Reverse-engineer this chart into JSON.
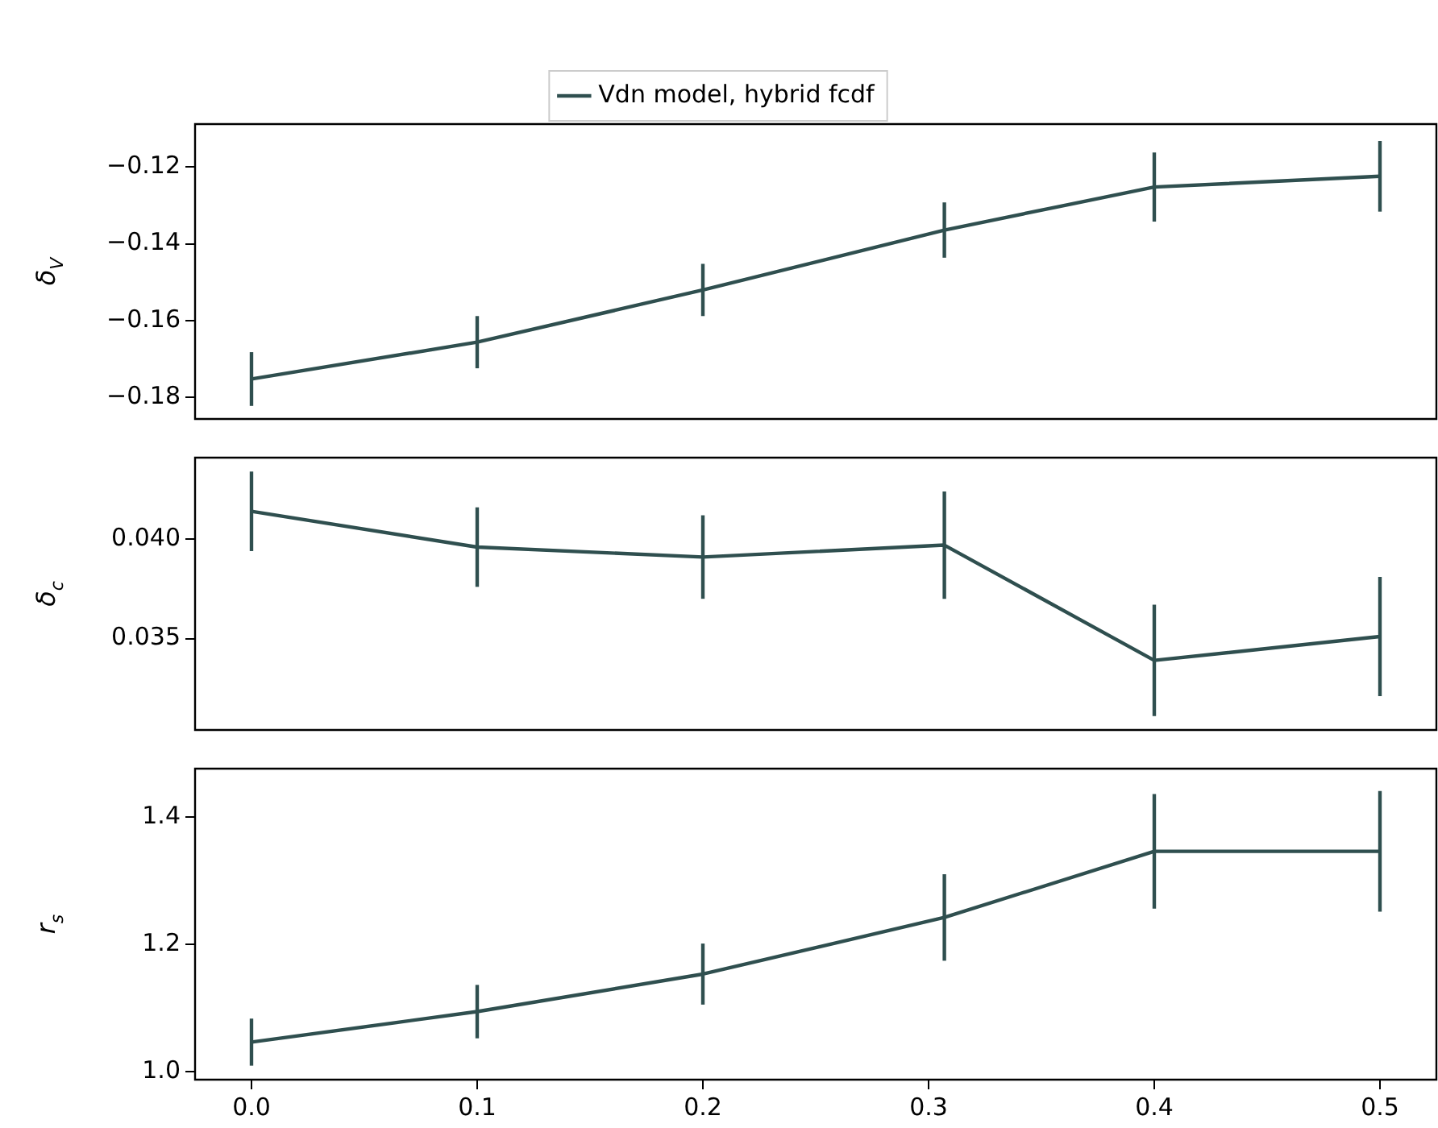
{
  "chart_data": [
    {
      "type": "line",
      "ylabel": "δ$_{V}$",
      "x": [
        0.0,
        0.1,
        0.2,
        0.307,
        0.4,
        0.5
      ],
      "series": [
        {
          "name": "Vdn model, hybrid fcdf",
          "color": "#2f4f4f",
          "values": [
            -0.1752,
            -0.1656,
            -0.152,
            -0.1364,
            -0.1252,
            -0.1224
          ],
          "errors": [
            0.007,
            0.0068,
            0.0068,
            0.0072,
            0.009,
            0.0092
          ]
        }
      ],
      "xlim": [
        -0.025,
        0.525
      ],
      "xticks": [
        0.0,
        0.1,
        0.2,
        0.3,
        0.4,
        0.5
      ],
      "ylim": [
        -0.1856,
        -0.1088
      ],
      "yticks": [
        -0.18,
        -0.16,
        -0.14,
        -0.12
      ],
      "tick_labels": "y",
      "legend": "top",
      "grid": false,
      "marker": "none",
      "line_style": "solid"
    },
    {
      "type": "line",
      "ylabel": "δ$_{c}$",
      "x": [
        0.0,
        0.1,
        0.2,
        0.307,
        0.4,
        0.5
      ],
      "series": [
        {
          "color": "#2f4f4f",
          "values": [
            0.0414,
            0.0396,
            0.0391,
            0.0397,
            0.0339,
            0.0351
          ],
          "errors": [
            0.002,
            0.002,
            0.0021,
            0.0027,
            0.0028,
            0.003
          ]
        }
      ],
      "xlim": [
        -0.025,
        0.525
      ],
      "xticks": [
        0.0,
        0.1,
        0.2,
        0.3,
        0.4,
        0.5
      ],
      "ylim": [
        0.0304,
        0.0441
      ],
      "yticks": [
        {
          "value": 0.035,
          "label": "0.035"
        },
        {
          "value": 0.04,
          "label": "0.040"
        }
      ],
      "tick_labels": "y",
      "grid": false,
      "marker": "none",
      "line_style": "solid"
    },
    {
      "type": "line",
      "ylabel": "r$_{s}$",
      "x": [
        0.0,
        0.1,
        0.2,
        0.307,
        0.4,
        0.5
      ],
      "series": [
        {
          "color": "#2f4f4f",
          "values": [
            1.046,
            1.094,
            1.153,
            1.242,
            1.346,
            1.346
          ],
          "errors": [
            0.037,
            0.042,
            0.048,
            0.068,
            0.09,
            0.095
          ]
        }
      ],
      "xlim": [
        -0.025,
        0.525
      ],
      "xticks": [
        {
          "value": 0.0,
          "label": "0.0"
        },
        0.1,
        0.2,
        0.3,
        0.4,
        0.5
      ],
      "ylim": [
        0.987,
        1.476
      ],
      "yticks": [
        {
          "value": 1.0,
          "label": "1.0"
        },
        1.2,
        1.4
      ],
      "grid": false,
      "marker": "none",
      "line_style": "solid"
    }
  ]
}
